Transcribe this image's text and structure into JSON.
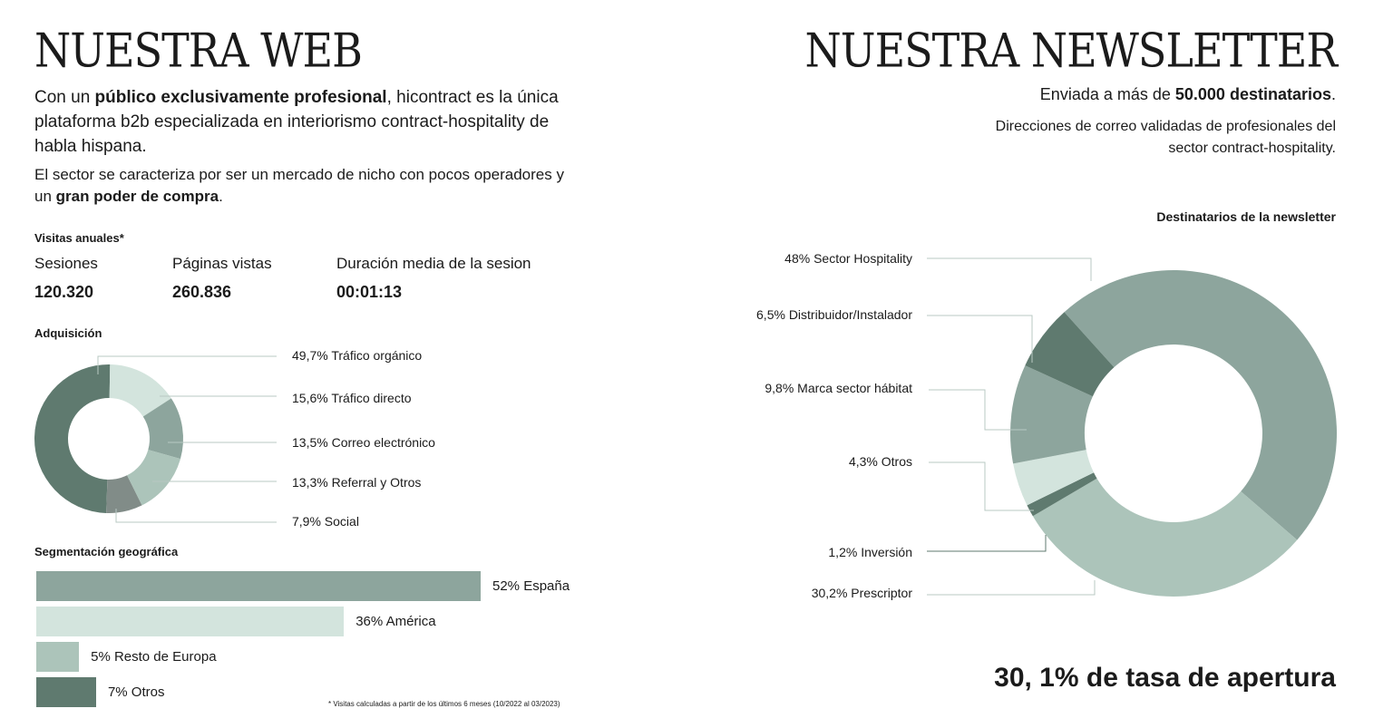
{
  "left": {
    "title": "NUESTRA WEB",
    "intro_1a": "Con un ",
    "intro_1b": "público exclusivamente profesional",
    "intro_1c": ", hicontract es la única plataforma b2b especializada en interiorismo contract-hospitality de habla hispana.",
    "intro_2a": "El sector se caracteriza por ser un mercado de nicho con pocos operadores y un ",
    "intro_2b": "gran poder de compra",
    "intro_2c": ".",
    "visits_heading": "Visitas anuales*",
    "stats": [
      {
        "label": "Sesiones",
        "value": "120.320"
      },
      {
        "label": "Páginas vistas",
        "value": "260.836"
      },
      {
        "label": "Duración media de la sesion",
        "value": "00:01:13"
      }
    ],
    "acquisition_heading": "Adquisición",
    "geo_heading": "Segmentación geográfica",
    "footnote": "* Visitas calculadas a partir de los últimos 6 meses (10/2022 al 03/2023)"
  },
  "right": {
    "title": "NUESTRA NEWSLETTER",
    "sent_a": "Enviada a más de ",
    "sent_b": "50.000 destinatarios",
    "sent_c": ".",
    "validated": "Direcciones de correo validadas de profesionales del sector contract-hospitality.",
    "chart_title": "Destinatarios de la newsletter",
    "open_rate": "30, 1% de tasa de apertura"
  },
  "colors": {
    "dark": "#5f7a6f",
    "mid": "#8da59d",
    "light": "#acc4ba",
    "pale": "#d3e4dd",
    "gray": "#818c88",
    "leader": "#b8c9c3"
  },
  "chart_data": [
    {
      "type": "pie",
      "title": "Adquisición",
      "donut": true,
      "slices": [
        {
          "label": "49,7% Tráfico orgánico",
          "value": 49.7,
          "color": "#5f7a6f"
        },
        {
          "label": "15,6% Tráfico directo",
          "value": 15.6,
          "color": "#d3e4dd"
        },
        {
          "label": "13,5% Correo electrónico",
          "value": 13.5,
          "color": "#8da59d"
        },
        {
          "label": "13,3% Referral y Otros",
          "value": 13.3,
          "color": "#acc4ba"
        },
        {
          "label": "7,9% Social",
          "value": 7.9,
          "color": "#818c88"
        }
      ]
    },
    {
      "type": "bar",
      "orientation": "horizontal",
      "title": "Segmentación geográfica",
      "bars": [
        {
          "label": "52% España",
          "value": 52,
          "color": "#8da59d"
        },
        {
          "label": "36% América",
          "value": 36,
          "color": "#d3e4dd"
        },
        {
          "label": "5% Resto de Europa",
          "value": 5,
          "color": "#acc4ba"
        },
        {
          "label": "7% Otros",
          "value": 7,
          "color": "#5f7a6f"
        }
      ]
    },
    {
      "type": "pie",
      "title": "Destinatarios de la newsletter",
      "donut": true,
      "slices": [
        {
          "label": "48% Sector Hospitality",
          "value": 48,
          "color": "#8da59d"
        },
        {
          "label": "30,2% Prescriptor",
          "value": 30.2,
          "color": "#acc4ba"
        },
        {
          "label": "1,2% Inversión",
          "value": 1.2,
          "color": "#5f7a6f"
        },
        {
          "label": "4,3% Otros",
          "value": 4.3,
          "color": "#d3e4dd"
        },
        {
          "label": "9,8% Marca sector hábitat",
          "value": 9.8,
          "color": "#8da59d"
        },
        {
          "label": "6,5% Distribuidor/Instalador",
          "value": 6.5,
          "color": "#5f7a6f"
        }
      ]
    }
  ]
}
